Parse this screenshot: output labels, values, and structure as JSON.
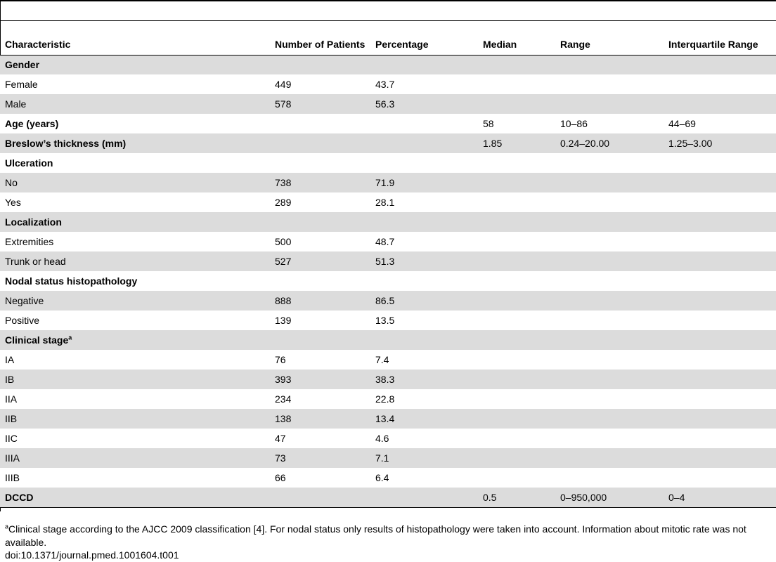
{
  "table": {
    "columns": [
      "Characteristic",
      "Number of Patients",
      "Percentage",
      "Median",
      "Range",
      "Interquartile Range"
    ],
    "rows": [
      {
        "characteristic": "Gender",
        "bold": true,
        "patients": "",
        "percentage": "",
        "median": "",
        "range": "",
        "iqr": ""
      },
      {
        "characteristic": "Female",
        "bold": false,
        "patients": "449",
        "percentage": "43.7",
        "median": "",
        "range": "",
        "iqr": ""
      },
      {
        "characteristic": "Male",
        "bold": false,
        "patients": "578",
        "percentage": "56.3",
        "median": "",
        "range": "",
        "iqr": ""
      },
      {
        "characteristic": "Age (years)",
        "bold": true,
        "patients": "",
        "percentage": "",
        "median": "58",
        "range": "10–86",
        "iqr": "44–69"
      },
      {
        "characteristic": "Breslow’s thickness (mm)",
        "bold": true,
        "patients": "",
        "percentage": "",
        "median": "1.85",
        "range": "0.24–20.00",
        "iqr": "1.25–3.00"
      },
      {
        "characteristic": "Ulceration",
        "bold": true,
        "patients": "",
        "percentage": "",
        "median": "",
        "range": "",
        "iqr": ""
      },
      {
        "characteristic": "No",
        "bold": false,
        "patients": "738",
        "percentage": "71.9",
        "median": "",
        "range": "",
        "iqr": ""
      },
      {
        "characteristic": "Yes",
        "bold": false,
        "patients": "289",
        "percentage": "28.1",
        "median": "",
        "range": "",
        "iqr": ""
      },
      {
        "characteristic": "Localization",
        "bold": true,
        "patients": "",
        "percentage": "",
        "median": "",
        "range": "",
        "iqr": ""
      },
      {
        "characteristic": "Extremities",
        "bold": false,
        "patients": "500",
        "percentage": "48.7",
        "median": "",
        "range": "",
        "iqr": ""
      },
      {
        "characteristic": "Trunk or head",
        "bold": false,
        "patients": "527",
        "percentage": "51.3",
        "median": "",
        "range": "",
        "iqr": ""
      },
      {
        "characteristic": "Nodal status histopathology",
        "bold": true,
        "patients": "",
        "percentage": "",
        "median": "",
        "range": "",
        "iqr": ""
      },
      {
        "characteristic": "Negative",
        "bold": false,
        "patients": "888",
        "percentage": "86.5",
        "median": "",
        "range": "",
        "iqr": ""
      },
      {
        "characteristic": "Positive",
        "bold": false,
        "patients": "139",
        "percentage": "13.5",
        "median": "",
        "range": "",
        "iqr": ""
      },
      {
        "characteristic": "Clinical stage",
        "sup": "a",
        "bold": true,
        "patients": "",
        "percentage": "",
        "median": "",
        "range": "",
        "iqr": ""
      },
      {
        "characteristic": "IA",
        "bold": false,
        "patients": "76",
        "percentage": "7.4",
        "median": "",
        "range": "",
        "iqr": ""
      },
      {
        "characteristic": "IB",
        "bold": false,
        "patients": "393",
        "percentage": "38.3",
        "median": "",
        "range": "",
        "iqr": ""
      },
      {
        "characteristic": "IIA",
        "bold": false,
        "patients": "234",
        "percentage": "22.8",
        "median": "",
        "range": "",
        "iqr": ""
      },
      {
        "characteristic": "IIB",
        "bold": false,
        "patients": "138",
        "percentage": "13.4",
        "median": "",
        "range": "",
        "iqr": ""
      },
      {
        "characteristic": "IIC",
        "bold": false,
        "patients": "47",
        "percentage": "4.6",
        "median": "",
        "range": "",
        "iqr": ""
      },
      {
        "characteristic": "IIIA",
        "bold": false,
        "patients": "73",
        "percentage": "7.1",
        "median": "",
        "range": "",
        "iqr": ""
      },
      {
        "characteristic": "IIIB",
        "bold": false,
        "patients": "66",
        "percentage": "6.4",
        "median": "",
        "range": "",
        "iqr": ""
      },
      {
        "characteristic": "DCCD",
        "bold": true,
        "patients": "",
        "percentage": "",
        "median": "0.5",
        "range": "0–950,000",
        "iqr": "0–4"
      }
    ]
  },
  "footnote": {
    "marker": "a",
    "text": "Clinical stage according to the AJCC 2009 classification [4]. For nodal status only results of histopathology were taken into account. Information about mitotic rate was not available."
  },
  "doi": "doi:10.1371/journal.pmed.1001604.t001"
}
